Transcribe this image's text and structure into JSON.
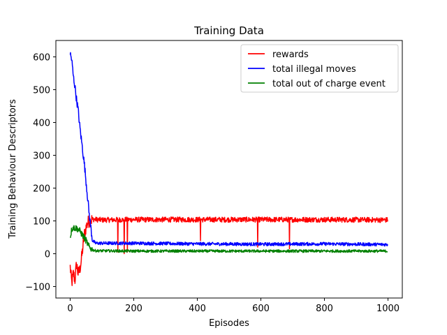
{
  "chart_data": {
    "type": "line",
    "title": "Training Data",
    "xlabel": "Episodes",
    "ylabel": "Training Behaviour Descriptors",
    "xlim": [
      -45,
      1045
    ],
    "ylim": [
      -135,
      650
    ],
    "xticks": [
      0,
      200,
      400,
      600,
      800,
      1000
    ],
    "yticks": [
      -100,
      0,
      100,
      200,
      300,
      400,
      500,
      600
    ],
    "legend_position": "top-right",
    "grid": false,
    "episodes": 1000,
    "series": [
      {
        "name": "rewards",
        "color": "#ff0000",
        "keypoints": [
          [
            0,
            -40
          ],
          [
            5,
            -90
          ],
          [
            10,
            -60
          ],
          [
            15,
            -80
          ],
          [
            20,
            -30
          ],
          [
            25,
            -60
          ],
          [
            30,
            -50
          ],
          [
            35,
            -20
          ],
          [
            40,
            20
          ],
          [
            45,
            60
          ],
          [
            50,
            80
          ],
          [
            55,
            95
          ],
          [
            60,
            100
          ],
          [
            70,
            105
          ],
          [
            100,
            103
          ],
          [
            200,
            104
          ],
          [
            400,
            104
          ],
          [
            600,
            104
          ],
          [
            800,
            104
          ],
          [
            1000,
            103
          ]
        ],
        "steady_mean": 103,
        "steady_noise": 8,
        "spikes": [
          [
            150,
            5
          ],
          [
            170,
            0
          ],
          [
            180,
            5
          ],
          [
            410,
            40
          ],
          [
            590,
            20
          ],
          [
            690,
            15
          ]
        ]
      },
      {
        "name": "total illegal moves",
        "color": "#0000ff",
        "keypoints": [
          [
            0,
            610
          ],
          [
            5,
            590
          ],
          [
            10,
            540
          ],
          [
            15,
            510
          ],
          [
            20,
            470
          ],
          [
            25,
            440
          ],
          [
            30,
            390
          ],
          [
            35,
            350
          ],
          [
            40,
            310
          ],
          [
            45,
            270
          ],
          [
            50,
            220
          ],
          [
            55,
            170
          ],
          [
            60,
            120
          ],
          [
            65,
            80
          ],
          [
            70,
            40
          ],
          [
            80,
            32
          ],
          [
            200,
            32
          ],
          [
            400,
            30
          ],
          [
            600,
            29
          ],
          [
            800,
            30
          ],
          [
            1000,
            28
          ]
        ],
        "steady_mean": 30,
        "steady_noise": 5
      },
      {
        "name": "total out of charge event",
        "color": "#008000",
        "keypoints": [
          [
            0,
            50
          ],
          [
            5,
            75
          ],
          [
            10,
            80
          ],
          [
            15,
            78
          ],
          [
            20,
            78
          ],
          [
            30,
            70
          ],
          [
            40,
            55
          ],
          [
            50,
            40
          ],
          [
            55,
            30
          ],
          [
            60,
            20
          ],
          [
            70,
            12
          ],
          [
            80,
            9
          ],
          [
            200,
            8
          ],
          [
            400,
            8
          ],
          [
            600,
            8
          ],
          [
            800,
            8
          ],
          [
            1000,
            8
          ]
        ],
        "steady_mean": 8,
        "steady_noise": 4
      }
    ]
  }
}
